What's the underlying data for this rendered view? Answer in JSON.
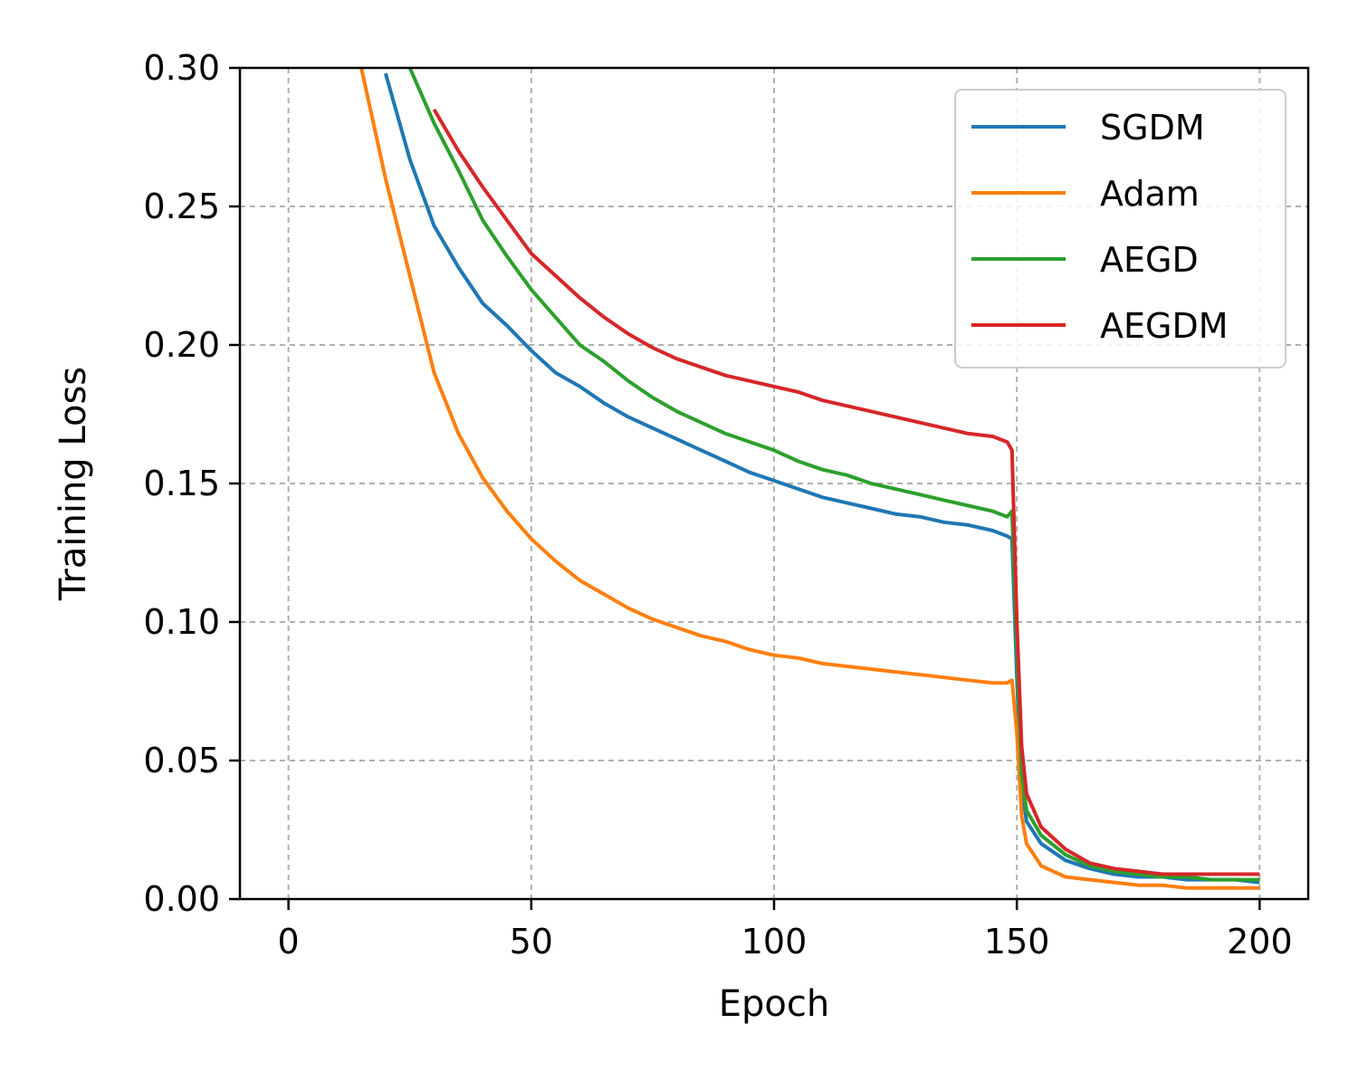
{
  "chart_data": {
    "type": "line",
    "xlabel": "Epoch",
    "ylabel": "Training Loss",
    "xlim": [
      -10,
      210
    ],
    "ylim": [
      0,
      0.3
    ],
    "xticks": [
      "0",
      "50",
      "100",
      "150",
      "200"
    ],
    "yticks": [
      "0.00",
      "0.05",
      "0.10",
      "0.15",
      "0.20",
      "0.25",
      "0.30"
    ],
    "grid": true,
    "legend_position": "top-right",
    "x": [
      15,
      20,
      25,
      30,
      35,
      40,
      45,
      50,
      55,
      60,
      65,
      70,
      75,
      80,
      85,
      90,
      95,
      100,
      105,
      110,
      115,
      120,
      125,
      130,
      135,
      140,
      145,
      148,
      149,
      150,
      151,
      152,
      155,
      160,
      165,
      170,
      175,
      180,
      185,
      190,
      195,
      200
    ],
    "series": [
      {
        "name": "SGDM",
        "color": "#1f77b4",
        "values": [
          null,
          0.298,
          0.267,
          0.243,
          0.228,
          0.215,
          0.207,
          0.198,
          0.19,
          0.185,
          0.179,
          0.174,
          0.17,
          0.166,
          0.162,
          0.158,
          0.154,
          0.151,
          0.148,
          0.145,
          0.143,
          0.141,
          0.139,
          0.138,
          0.136,
          0.135,
          0.133,
          0.131,
          0.13,
          0.08,
          0.04,
          0.028,
          0.02,
          0.014,
          0.011,
          0.009,
          0.008,
          0.008,
          0.007,
          0.007,
          0.007,
          0.006
        ]
      },
      {
        "name": "Adam",
        "color": "#ff7f0e",
        "values": [
          0.3,
          0.26,
          0.225,
          0.19,
          0.168,
          0.152,
          0.14,
          0.13,
          0.122,
          0.115,
          0.11,
          0.105,
          0.101,
          0.098,
          0.095,
          0.093,
          0.09,
          0.088,
          0.087,
          0.085,
          0.084,
          0.083,
          0.082,
          0.081,
          0.08,
          0.079,
          0.078,
          0.078,
          0.079,
          0.06,
          0.03,
          0.02,
          0.012,
          0.008,
          0.007,
          0.006,
          0.005,
          0.005,
          0.004,
          0.004,
          0.004,
          0.004
        ]
      },
      {
        "name": "AEGD",
        "color": "#2ca02c",
        "values": [
          null,
          null,
          0.3,
          0.28,
          0.263,
          0.245,
          0.232,
          0.22,
          0.21,
          0.2,
          0.194,
          0.187,
          0.181,
          0.176,
          0.172,
          0.168,
          0.165,
          0.162,
          0.158,
          0.155,
          0.153,
          0.15,
          0.148,
          0.146,
          0.144,
          0.142,
          0.14,
          0.138,
          0.14,
          0.09,
          0.045,
          0.032,
          0.023,
          0.016,
          0.012,
          0.01,
          0.009,
          0.008,
          0.008,
          0.007,
          0.007,
          0.007
        ]
      },
      {
        "name": "AEGDM",
        "color": "#d62728",
        "values": [
          null,
          null,
          null,
          0.285,
          0.27,
          0.257,
          0.245,
          0.233,
          0.225,
          0.217,
          0.21,
          0.204,
          0.199,
          0.195,
          0.192,
          0.189,
          0.187,
          0.185,
          0.183,
          0.18,
          0.178,
          0.176,
          0.174,
          0.172,
          0.17,
          0.168,
          0.167,
          0.165,
          0.162,
          0.1,
          0.055,
          0.038,
          0.026,
          0.018,
          0.013,
          0.011,
          0.01,
          0.009,
          0.009,
          0.009,
          0.009,
          0.009
        ]
      }
    ]
  }
}
